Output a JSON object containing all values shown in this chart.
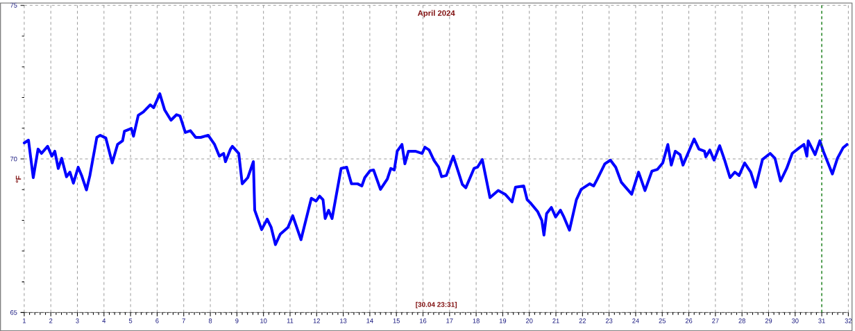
{
  "chart_data": {
    "type": "line",
    "title": "April 2024",
    "ylabel": "°F",
    "annotations": [
      "[30.04 23:31]"
    ],
    "x": [
      1.0,
      1.16,
      1.34,
      1.52,
      1.65,
      1.88,
      2.04,
      2.15,
      2.28,
      2.41,
      2.59,
      2.72,
      2.85,
      3.03,
      3.16,
      3.34,
      3.47,
      3.73,
      3.86,
      4.07,
      4.31,
      4.51,
      4.7,
      4.77,
      5.03,
      5.11,
      5.29,
      5.48,
      5.74,
      5.87,
      6.1,
      6.28,
      6.52,
      6.73,
      6.86,
      7.06,
      7.25,
      7.45,
      7.64,
      7.92,
      8.16,
      8.34,
      8.5,
      8.57,
      8.76,
      8.83,
      9.07,
      9.2,
      9.41,
      9.62,
      9.67,
      9.93,
      10.14,
      10.29,
      10.45,
      10.63,
      10.92,
      11.1,
      11.41,
      11.8,
      11.98,
      12.11,
      12.24,
      12.32,
      12.45,
      12.58,
      12.92,
      13.13,
      13.31,
      13.54,
      13.7,
      13.81,
      14.01,
      14.14,
      14.4,
      14.66,
      14.79,
      14.92,
      15.03,
      15.21,
      15.32,
      15.45,
      15.71,
      15.97,
      16.07,
      16.23,
      16.41,
      16.59,
      16.7,
      16.88,
      17.14,
      17.48,
      17.61,
      17.92,
      18.05,
      18.23,
      18.52,
      18.83,
      19.09,
      19.35,
      19.48,
      19.79,
      19.92,
      20.05,
      20.31,
      20.47,
      20.55,
      20.65,
      20.83,
      20.99,
      21.17,
      21.3,
      21.51,
      21.77,
      21.95,
      22.27,
      22.42,
      22.55,
      22.84,
      23.05,
      23.25,
      23.46,
      23.64,
      23.85,
      24.11,
      24.35,
      24.61,
      24.82,
      25.02,
      25.21,
      25.34,
      25.49,
      25.67,
      25.78,
      26.2,
      26.38,
      26.59,
      26.64,
      26.79,
      26.95,
      27.16,
      27.34,
      27.55,
      27.73,
      27.89,
      28.1,
      28.33,
      28.51,
      28.77,
      29.06,
      29.24,
      29.45,
      29.68,
      29.89,
      30.15,
      30.33,
      30.44,
      30.49,
      30.75,
      30.93,
      31.06,
      31.4,
      31.59,
      31.8,
      31.95
    ],
    "series": [
      {
        "color": "#0000ff",
        "values": [
          70.52,
          70.61,
          69.39,
          70.32,
          70.18,
          70.41,
          70.09,
          70.25,
          69.69,
          70.02,
          69.42,
          69.57,
          69.21,
          69.73,
          69.46,
          68.99,
          69.46,
          70.7,
          70.77,
          70.68,
          69.87,
          70.47,
          70.59,
          70.9,
          70.99,
          70.74,
          71.42,
          71.53,
          71.76,
          71.67,
          72.12,
          71.6,
          71.26,
          71.44,
          71.4,
          70.86,
          70.92,
          70.7,
          70.7,
          70.77,
          70.47,
          70.09,
          70.18,
          69.91,
          70.32,
          70.41,
          70.18,
          69.19,
          69.39,
          69.91,
          68.33,
          67.7,
          68.04,
          67.77,
          67.21,
          67.55,
          67.77,
          68.15,
          67.37,
          68.72,
          68.63,
          68.79,
          68.67,
          68.06,
          68.33,
          68.06,
          69.69,
          69.73,
          69.19,
          69.19,
          69.12,
          69.39,
          69.62,
          69.64,
          69.01,
          69.35,
          69.69,
          69.64,
          70.25,
          70.47,
          69.84,
          70.25,
          70.25,
          70.18,
          70.38,
          70.29,
          69.96,
          69.73,
          69.42,
          69.46,
          70.09,
          69.17,
          69.06,
          69.69,
          69.73,
          69.98,
          68.74,
          68.97,
          68.85,
          68.6,
          69.08,
          69.12,
          68.67,
          68.56,
          68.29,
          68.0,
          67.52,
          68.22,
          68.42,
          68.11,
          68.33,
          68.11,
          67.68,
          68.67,
          69.01,
          69.19,
          69.12,
          69.33,
          69.84,
          69.96,
          69.73,
          69.24,
          69.06,
          68.85,
          69.57,
          68.97,
          69.6,
          69.66,
          69.87,
          70.47,
          69.8,
          70.25,
          70.14,
          69.8,
          70.65,
          70.32,
          70.25,
          70.07,
          70.29,
          69.96,
          70.43,
          69.98,
          69.39,
          69.57,
          69.46,
          69.87,
          69.57,
          69.08,
          69.98,
          70.18,
          70.02,
          69.28,
          69.69,
          70.18,
          70.36,
          70.47,
          70.09,
          70.59,
          70.14,
          70.59,
          70.25,
          69.51,
          70.02,
          70.36,
          70.47
        ]
      }
    ],
    "xlim": [
      1,
      32
    ],
    "xticks": [
      1,
      2,
      3,
      4,
      5,
      6,
      7,
      8,
      9,
      10,
      11,
      12,
      13,
      14,
      15,
      16,
      17,
      18,
      19,
      20,
      21,
      22,
      23,
      24,
      25,
      26,
      27,
      28,
      29,
      30,
      31,
      32
    ],
    "ylim": [
      65,
      75
    ],
    "yticks": [
      65,
      {
        "value": 66,
        "label": null
      },
      {
        "value": 67,
        "label": null
      },
      {
        "value": 68,
        "label": null
      },
      {
        "value": 69,
        "label": null
      },
      70,
      {
        "value": 71,
        "label": null
      },
      {
        "value": 72,
        "label": null
      },
      {
        "value": 73,
        "label": null
      },
      {
        "value": 74,
        "label": null
      },
      75
    ],
    "grid": true,
    "ref_lines": [
      {
        "axis": "x",
        "value": 31,
        "color": "#008000",
        "line_style": "dashed"
      }
    ]
  }
}
